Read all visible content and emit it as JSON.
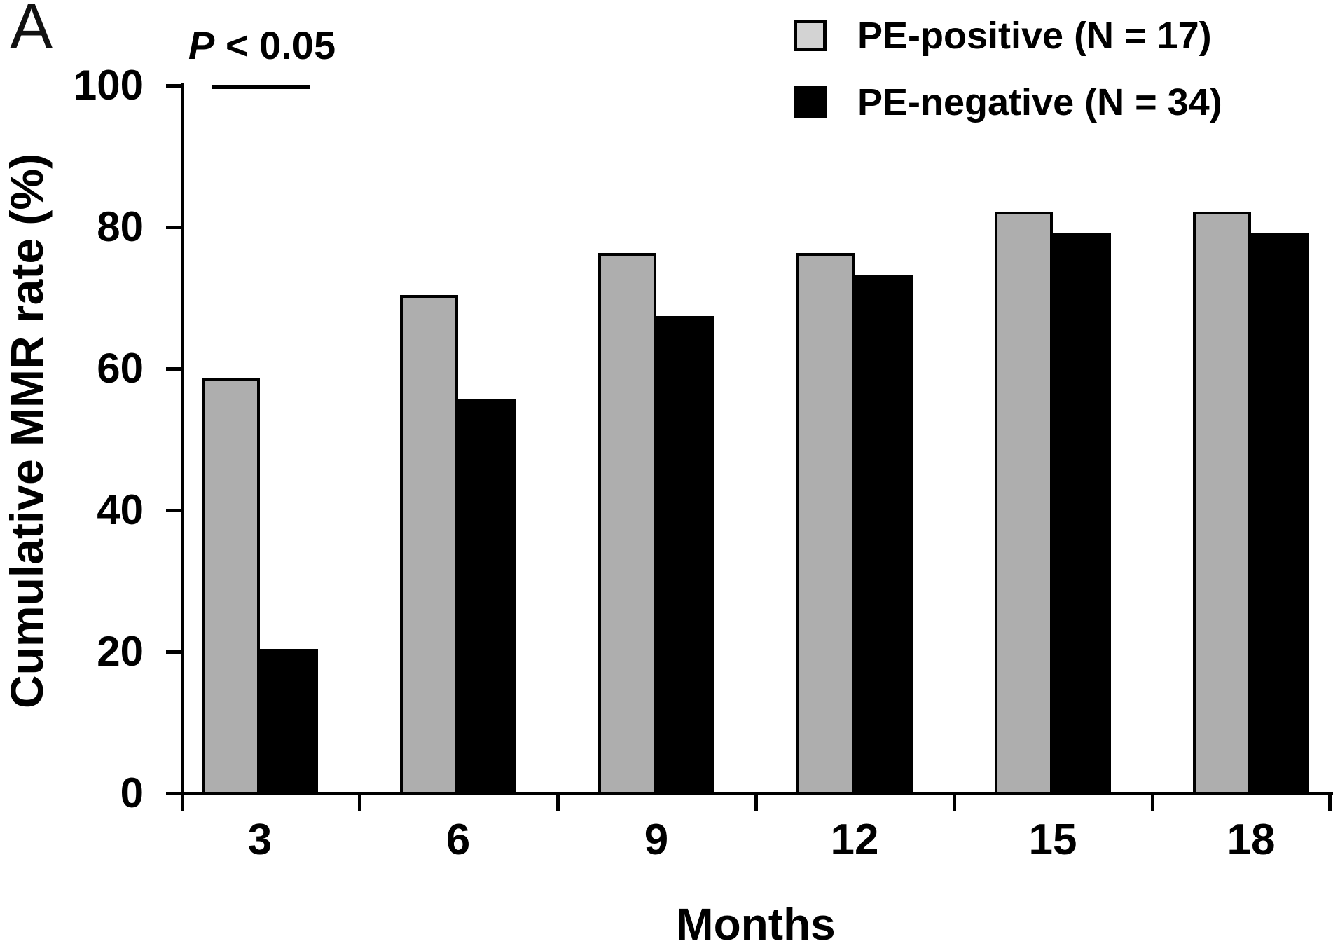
{
  "panel_label": "A",
  "legend": {
    "items": [
      {
        "label": "PE-positive (N = 17)",
        "swatch_color": "#d3d3d3"
      },
      {
        "label": "PE-negative (N = 34)",
        "swatch_color": "#000000"
      }
    ]
  },
  "chart_data": {
    "type": "bar",
    "title": "",
    "categories": [
      "3",
      "6",
      "9",
      "12",
      "15",
      "18"
    ],
    "series": [
      {
        "name": "PE-positive (N = 17)",
        "color": "#aeaeae",
        "outline": "#000000",
        "values": [
          58.8,
          70.6,
          76.5,
          76.5,
          82.4,
          82.4
        ]
      },
      {
        "name": "PE-negative (N = 34)",
        "color": "#000000",
        "outline": "#000000",
        "values": [
          20.6,
          55.9,
          67.6,
          73.5,
          79.4,
          79.4
        ]
      }
    ],
    "xlabel": "Months",
    "ylabel": "Cumulative MMR rate (%)",
    "ylim": [
      0,
      100
    ],
    "yticks": [
      0,
      20,
      40,
      60,
      80,
      100
    ],
    "grid": false,
    "legend_position": "top-right",
    "significance": {
      "label_italic": "P",
      "label_rest": " < 0.05",
      "compared_group": "3"
    }
  }
}
